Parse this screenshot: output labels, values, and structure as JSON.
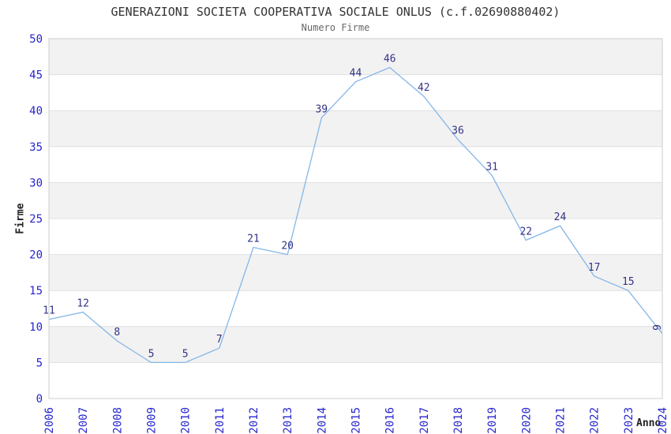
{
  "chart_data": {
    "type": "line",
    "title": "GENERAZIONI SOCIETA COOPERATIVA SOCIALE ONLUS (c.f.02690880402)",
    "subtitle": "Numero Firme",
    "xlabel": "Anno",
    "ylabel": "Firme",
    "categories": [
      "2006",
      "2007",
      "2008",
      "2009",
      "2010",
      "2011",
      "2012",
      "2013",
      "2014",
      "2015",
      "2016",
      "2017",
      "2018",
      "2019",
      "2020",
      "2021",
      "2022",
      "2023",
      "2024"
    ],
    "values": [
      11,
      12,
      8,
      5,
      5,
      7,
      21,
      20,
      39,
      44,
      46,
      42,
      36,
      31,
      22,
      24,
      17,
      15,
      9
    ],
    "ylim": [
      0,
      50
    ],
    "ytick_step": 5,
    "yticks": [
      0,
      5,
      10,
      15,
      20,
      25,
      30,
      35,
      40,
      45,
      50
    ],
    "grid": "horizontal-bands-alternating",
    "legend_position": "none",
    "data_labels_visible": true,
    "last_data_label_rotated": true,
    "colors": {
      "line": "#85b6e8",
      "tick_label": "#2626cc",
      "data_label": "#333388",
      "band_gray": "#f2f2f2",
      "band_white": "#ffffff",
      "gridline": "#e0e0e0",
      "plot_border": "#cccccc",
      "title": "#333333",
      "subtitle": "#666666",
      "axis_label": "#222222"
    }
  }
}
